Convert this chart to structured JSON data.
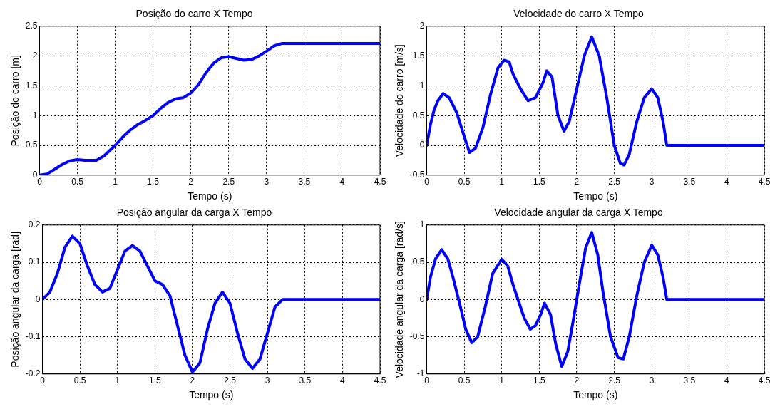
{
  "chart_data": [
    {
      "type": "line",
      "title": "Posição do carro X Tempo",
      "xlabel": "Tempo (s)",
      "ylabel": "Posição do carro [m]",
      "x": [
        0,
        0.1,
        0.2,
        0.3,
        0.4,
        0.5,
        0.6,
        0.75,
        0.85,
        1.0,
        1.1,
        1.2,
        1.3,
        1.4,
        1.5,
        1.6,
        1.7,
        1.8,
        1.9,
        2.0,
        2.1,
        2.2,
        2.3,
        2.4,
        2.5,
        2.6,
        2.7,
        2.8,
        2.9,
        3.0,
        3.1,
        3.2,
        4.5
      ],
      "series": [
        {
          "color": "#0000ff",
          "values": [
            0,
            0.02,
            0.1,
            0.18,
            0.24,
            0.26,
            0.25,
            0.25,
            0.32,
            0.5,
            0.64,
            0.76,
            0.85,
            0.92,
            1.0,
            1.12,
            1.22,
            1.28,
            1.3,
            1.38,
            1.52,
            1.72,
            1.88,
            1.97,
            1.99,
            1.96,
            1.93,
            1.94,
            2.0,
            2.08,
            2.17,
            2.21,
            2.21
          ]
        }
      ],
      "xlim": [
        0,
        4.5
      ],
      "ylim": [
        0,
        2.5
      ],
      "xticks": [
        0,
        0.5,
        1,
        1.5,
        2,
        2.5,
        3,
        3.5,
        4,
        4.5
      ],
      "yticks": [
        0,
        0.5,
        1,
        1.5,
        2,
        2.5
      ],
      "grid": true,
      "line_style": "solid",
      "marker": "none"
    },
    {
      "type": "line",
      "title": "Velocidade do carro X Tempo",
      "xlabel": "Tempo (s)",
      "ylabel": "Velocidade do carro [m/s]",
      "x": [
        0,
        0.05,
        0.1,
        0.15,
        0.22,
        0.3,
        0.4,
        0.5,
        0.57,
        0.65,
        0.75,
        0.85,
        0.95,
        1.03,
        1.1,
        1.15,
        1.25,
        1.35,
        1.45,
        1.55,
        1.6,
        1.67,
        1.75,
        1.83,
        1.9,
        2.0,
        2.1,
        2.2,
        2.3,
        2.4,
        2.5,
        2.58,
        2.63,
        2.7,
        2.8,
        2.9,
        3.0,
        3.08,
        3.15,
        3.2,
        4.5
      ],
      "series": [
        {
          "color": "#0000ff",
          "values": [
            0,
            0.35,
            0.6,
            0.75,
            0.87,
            0.8,
            0.55,
            0.15,
            -0.12,
            -0.05,
            0.3,
            0.85,
            1.3,
            1.43,
            1.4,
            1.2,
            0.95,
            0.75,
            0.8,
            1.05,
            1.25,
            1.15,
            0.5,
            0.24,
            0.4,
            0.95,
            1.5,
            1.82,
            1.5,
            0.8,
            0.0,
            -0.3,
            -0.33,
            -0.15,
            0.4,
            0.8,
            0.95,
            0.8,
            0.4,
            0.0,
            0.0
          ]
        }
      ],
      "xlim": [
        0,
        4.5
      ],
      "ylim": [
        -0.5,
        2
      ],
      "xticks": [
        0,
        0.5,
        1,
        1.5,
        2,
        2.5,
        3,
        3.5,
        4,
        4.5
      ],
      "yticks": [
        -0.5,
        0,
        0.5,
        1,
        1.5,
        2
      ],
      "grid": true,
      "line_style": "solid",
      "marker": "none"
    },
    {
      "type": "line",
      "title": "Posição angular da carga X Tempo",
      "xlabel": "Tempo (s)",
      "ylabel": "Posição angular da carga [rad]",
      "x": [
        0,
        0.1,
        0.2,
        0.3,
        0.4,
        0.5,
        0.6,
        0.7,
        0.8,
        0.9,
        1.0,
        1.1,
        1.2,
        1.3,
        1.4,
        1.5,
        1.6,
        1.7,
        1.8,
        1.9,
        2.0,
        2.1,
        2.2,
        2.3,
        2.4,
        2.5,
        2.6,
        2.7,
        2.8,
        2.9,
        3.0,
        3.1,
        3.2,
        4.5
      ],
      "series": [
        {
          "color": "#0000ff",
          "values": [
            0,
            0.02,
            0.07,
            0.14,
            0.17,
            0.15,
            0.09,
            0.04,
            0.02,
            0.03,
            0.08,
            0.13,
            0.145,
            0.13,
            0.09,
            0.05,
            0.04,
            0.01,
            -0.07,
            -0.15,
            -0.195,
            -0.17,
            -0.08,
            -0.01,
            0.02,
            -0.01,
            -0.09,
            -0.16,
            -0.185,
            -0.16,
            -0.09,
            -0.02,
            0.0,
            0.0
          ]
        }
      ],
      "xlim": [
        0,
        4.5
      ],
      "ylim": [
        -0.2,
        0.2
      ],
      "xticks": [
        0,
        0.5,
        1,
        1.5,
        2,
        2.5,
        3,
        3.5,
        4,
        4.5
      ],
      "yticks": [
        -0.2,
        -0.1,
        0,
        0.1,
        0.2
      ],
      "grid": true,
      "line_style": "solid",
      "marker": "none"
    },
    {
      "type": "line",
      "title": "Velocidade angular da carga X Tempo",
      "xlabel": "Tempo (s)",
      "ylabel": "Velocidade angular da carga [rad/s]",
      "x": [
        0,
        0.05,
        0.12,
        0.2,
        0.28,
        0.35,
        0.45,
        0.52,
        0.6,
        0.68,
        0.78,
        0.88,
        1.0,
        1.08,
        1.15,
        1.25,
        1.3,
        1.38,
        1.45,
        1.52,
        1.57,
        1.65,
        1.72,
        1.8,
        1.88,
        1.95,
        2.05,
        2.12,
        2.2,
        2.28,
        2.35,
        2.45,
        2.55,
        2.62,
        2.7,
        2.8,
        2.9,
        3.0,
        3.08,
        3.15,
        3.2,
        4.5
      ],
      "series": [
        {
          "color": "#0000ff",
          "values": [
            0,
            0.3,
            0.55,
            0.67,
            0.55,
            0.3,
            -0.1,
            -0.4,
            -0.58,
            -0.5,
            -0.1,
            0.35,
            0.54,
            0.45,
            0.2,
            -0.1,
            -0.25,
            -0.4,
            -0.35,
            -0.2,
            -0.05,
            -0.2,
            -0.6,
            -0.9,
            -0.7,
            -0.3,
            0.3,
            0.7,
            0.9,
            0.6,
            0.1,
            -0.5,
            -0.78,
            -0.8,
            -0.5,
            0.05,
            0.5,
            0.73,
            0.6,
            0.3,
            0.0,
            0.0
          ]
        }
      ],
      "xlim": [
        0,
        4.5
      ],
      "ylim": [
        -1,
        1
      ],
      "xticks": [
        0,
        0.5,
        1,
        1.5,
        2,
        2.5,
        3,
        3.5,
        4,
        4.5
      ],
      "yticks": [
        -1,
        -0.5,
        0,
        0.5,
        1
      ],
      "grid": true,
      "line_style": "solid",
      "marker": "none"
    }
  ]
}
